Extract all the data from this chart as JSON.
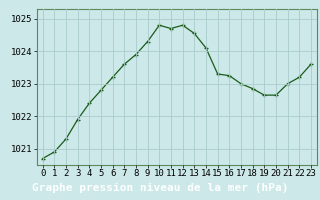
{
  "x": [
    0,
    1,
    2,
    3,
    4,
    5,
    6,
    7,
    8,
    9,
    10,
    11,
    12,
    13,
    14,
    15,
    16,
    17,
    18,
    19,
    20,
    21,
    22,
    23
  ],
  "y": [
    1020.7,
    1020.9,
    1021.3,
    1021.9,
    1022.4,
    1022.8,
    1023.2,
    1023.6,
    1023.9,
    1024.3,
    1024.8,
    1024.7,
    1024.8,
    1024.55,
    1024.1,
    1023.3,
    1023.25,
    1023.0,
    1022.85,
    1022.65,
    1022.65,
    1023.0,
    1023.2,
    1023.6
  ],
  "line_color": "#1a5c1a",
  "marker": "+",
  "plot_bg_color": "#cce8e8",
  "fig_bg_color": "#cce8e8",
  "label_bg_color": "#2d6b2d",
  "grid_color": "#aacccc",
  "border_color": "#5c8a5c",
  "xlabel": "Graphe pression niveau de la mer (hPa)",
  "xlabel_fontsize": 8,
  "xlabel_color": "#ffffff",
  "ylim": [
    1020.5,
    1025.3
  ],
  "yticks": [
    1021,
    1022,
    1023,
    1024,
    1025
  ],
  "xticks": [
    0,
    1,
    2,
    3,
    4,
    5,
    6,
    7,
    8,
    9,
    10,
    11,
    12,
    13,
    14,
    15,
    16,
    17,
    18,
    19,
    20,
    21,
    22,
    23
  ],
  "tick_fontsize": 6.5,
  "title_text": "1025",
  "title_color": "#1a5c1a",
  "title_fontsize": 7
}
